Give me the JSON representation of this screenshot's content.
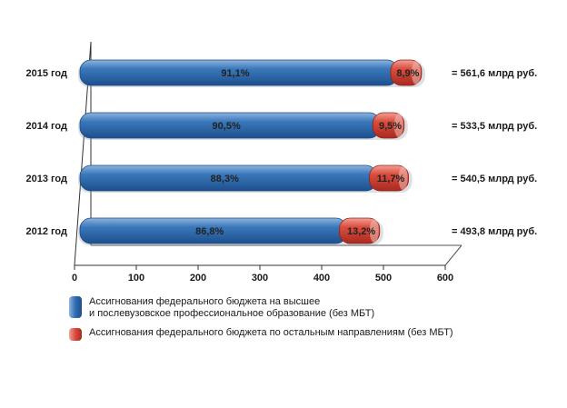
{
  "chart_data": {
    "type": "bar",
    "orientation": "horizontal",
    "stacked": true,
    "categories": [
      "2015 год",
      "2014 год",
      "2013 год",
      "2012 год"
    ],
    "series": [
      {
        "name": "Ассигнования федерального бюджета на высшее и послевузовское профессиональное образование (без МБТ)",
        "percent_labels": [
          "91,1%",
          "90,5%",
          "88,3%",
          "86,8%"
        ],
        "values": [
          511.6,
          482.8,
          477.3,
          428.6
        ],
        "color": "#2f6db1"
      },
      {
        "name": "Ассигнования федерального бюджета по остальным направлениям (без МБТ)",
        "percent_labels": [
          "8,9%",
          "9,5%",
          "11,7%",
          "13,2%"
        ],
        "values": [
          50.0,
          50.7,
          63.2,
          65.2
        ],
        "color": "#d84a3c"
      }
    ],
    "totals": [
      "= 561,6 млрд руб.",
      "= 533,5 млрд руб.",
      "= 540,5 млрд руб.",
      "= 493,8 млрд руб."
    ],
    "total_values": [
      561.6,
      533.5,
      540.5,
      493.8
    ],
    "xlim": [
      0,
      600
    ],
    "xticks": [
      "0",
      "100",
      "200",
      "300",
      "400",
      "500",
      "600"
    ],
    "legend": {
      "series1_line1": "Ассигнования федерального бюджета на высшее",
      "series1_line2": "и послевузовское профессиональное образование (без МБТ)",
      "series2": "Ассигнования федерального бюджета по остальным направлениям (без МБТ)"
    },
    "grid": false,
    "legend_position": "bottom-left"
  }
}
